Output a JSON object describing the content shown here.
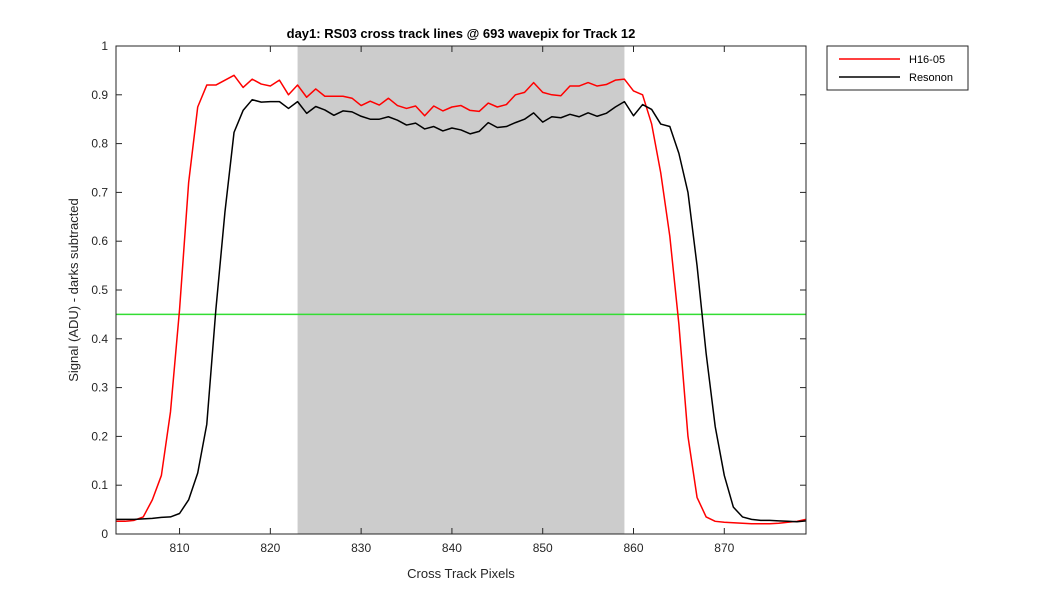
{
  "chart_data": {
    "type": "line",
    "title": "day1: RS03  cross track lines @ 693 wavepix for Track 12",
    "xlabel": "Cross Track Pixels",
    "ylabel": "Signal (ADU) - darks subtracted",
    "xlim": [
      803,
      879
    ],
    "ylim": [
      0,
      1
    ],
    "x_ticks": [
      810,
      820,
      830,
      840,
      850,
      860,
      870
    ],
    "y_ticks": [
      0,
      0.1,
      0.2,
      0.3,
      0.4,
      0.5,
      0.6,
      0.7,
      0.8,
      0.9,
      1
    ],
    "y_tick_labels": [
      "0",
      "0.1",
      "0.2",
      "0.3",
      "0.4",
      "0.5",
      "0.6",
      "0.7",
      "0.8",
      "0.9",
      "1"
    ],
    "grid": false,
    "legend_position": "outside-top-right",
    "shaded_region": {
      "x": [
        823,
        859
      ],
      "color": "#cccccc"
    },
    "threshold_line": {
      "y": 0.45,
      "color": "#33dd33"
    },
    "x": [
      803,
      804,
      805,
      806,
      807,
      808,
      809,
      810,
      811,
      812,
      813,
      814,
      815,
      816,
      817,
      818,
      819,
      820,
      821,
      822,
      823,
      824,
      825,
      826,
      827,
      828,
      829,
      830,
      831,
      832,
      833,
      834,
      835,
      836,
      837,
      838,
      839,
      840,
      841,
      842,
      843,
      844,
      845,
      846,
      847,
      848,
      849,
      850,
      851,
      852,
      853,
      854,
      855,
      856,
      857,
      858,
      859,
      860,
      861,
      862,
      863,
      864,
      865,
      866,
      867,
      868,
      869,
      870,
      871,
      872,
      873,
      874,
      875,
      876,
      877,
      878,
      879
    ],
    "series": [
      {
        "name": "H16-05",
        "color": "#ff0000",
        "values": [
          0.026,
          0.026,
          0.028,
          0.035,
          0.07,
          0.12,
          0.25,
          0.46,
          0.72,
          0.875,
          0.92,
          0.92,
          0.93,
          0.94,
          0.915,
          0.932,
          0.922,
          0.918,
          0.93,
          0.9,
          0.92,
          0.895,
          0.912,
          0.897,
          0.897,
          0.897,
          0.893,
          0.878,
          0.887,
          0.879,
          0.893,
          0.878,
          0.872,
          0.877,
          0.857,
          0.877,
          0.867,
          0.875,
          0.878,
          0.868,
          0.866,
          0.883,
          0.875,
          0.88,
          0.9,
          0.905,
          0.925,
          0.905,
          0.9,
          0.898,
          0.918,
          0.918,
          0.925,
          0.918,
          0.921,
          0.93,
          0.932,
          0.908,
          0.9,
          0.84,
          0.74,
          0.61,
          0.43,
          0.2,
          0.075,
          0.035,
          0.026,
          0.024,
          0.023,
          0.022,
          0.021,
          0.021,
          0.021,
          0.022,
          0.024,
          0.026,
          0.03
        ]
      },
      {
        "name": "Resonon",
        "color": "#000000",
        "values": [
          0.03,
          0.03,
          0.03,
          0.031,
          0.032,
          0.034,
          0.035,
          0.042,
          0.07,
          0.125,
          0.225,
          0.46,
          0.66,
          0.823,
          0.868,
          0.89,
          0.885,
          0.886,
          0.886,
          0.872,
          0.886,
          0.862,
          0.876,
          0.869,
          0.858,
          0.867,
          0.865,
          0.856,
          0.85,
          0.85,
          0.855,
          0.848,
          0.838,
          0.842,
          0.83,
          0.835,
          0.826,
          0.832,
          0.828,
          0.82,
          0.825,
          0.843,
          0.833,
          0.835,
          0.843,
          0.85,
          0.863,
          0.844,
          0.855,
          0.853,
          0.86,
          0.855,
          0.863,
          0.856,
          0.862,
          0.875,
          0.886,
          0.857,
          0.88,
          0.87,
          0.84,
          0.835,
          0.78,
          0.7,
          0.55,
          0.37,
          0.22,
          0.12,
          0.055,
          0.035,
          0.03,
          0.028,
          0.028,
          0.027,
          0.026,
          0.025,
          0.027
        ]
      }
    ]
  }
}
